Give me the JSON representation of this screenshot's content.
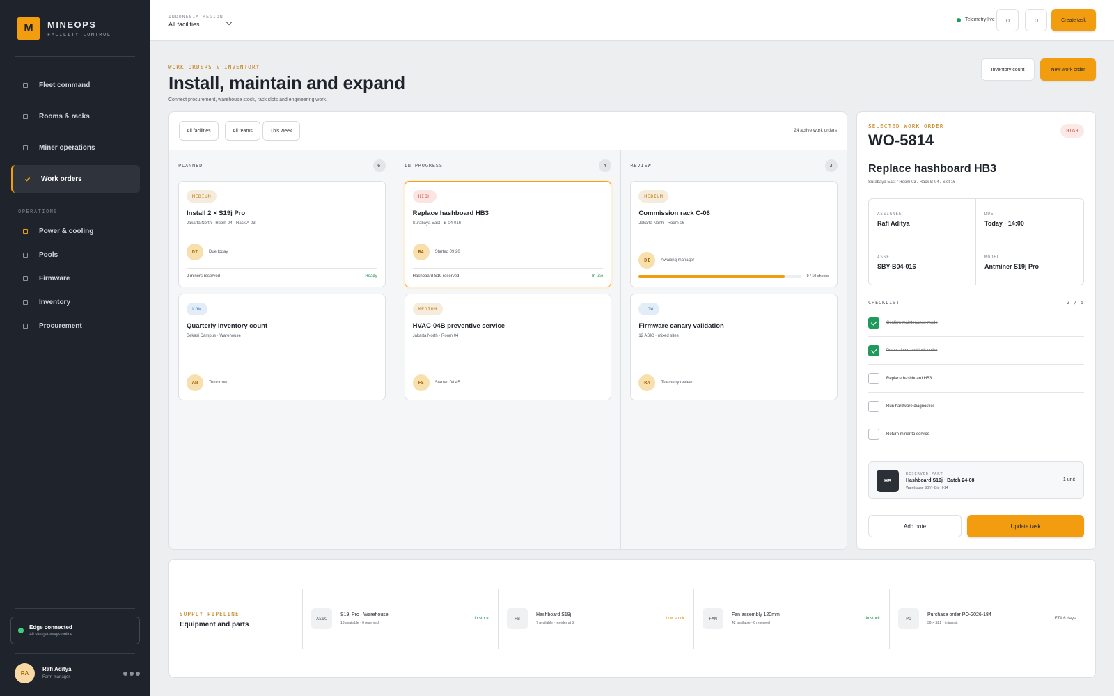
{
  "sidebar": {
    "logo": "M",
    "brand": "MINEOPS",
    "tagline": "FACILITY CONTROL",
    "nav": [
      {
        "label": "Fleet command"
      },
      {
        "label": "Rooms & racks"
      },
      {
        "label": "Miner operations"
      },
      {
        "label": "Work orders",
        "active": true
      }
    ],
    "section": "OPERATIONS",
    "ops": [
      {
        "label": "Power & cooling",
        "color": "#f29d0f"
      },
      {
        "label": "Pools"
      },
      {
        "label": "Firmware"
      },
      {
        "label": "Inventory"
      },
      {
        "label": "Procurement"
      }
    ],
    "status": {
      "title": "Edge connected",
      "detail": "All site gateways online",
      "color": "#3ccf7a"
    },
    "user": {
      "initials": "RA",
      "name": "Rafi Aditya",
      "role": "Farm manager"
    }
  },
  "topbar": {
    "region_label": "INDONESIA REGION",
    "region": "All facilities",
    "telemetry": "Telemetry live",
    "telemetry_color": "#1e9a5a",
    "create": "Create task"
  },
  "header": {
    "eyebrow": "WORK ORDERS & INVENTORY",
    "title": "Install, maintain and expand",
    "subtitle": "Connect procurement, warehouse stock, rack slots and engineering work.",
    "secondary_action": "Inventory count",
    "primary_action": "New work order"
  },
  "board": {
    "filters": [
      "All facilities",
      "All teams",
      "This week"
    ],
    "summary": "24 active work orders",
    "columns": [
      {
        "name": "PLANNED",
        "count": 6,
        "cards": [
          {
            "priority": "MEDIUM",
            "priority_color": "#c27a0a",
            "title": "Install 2 × S19j Pro",
            "location": "Jakarta North · Room 04 · Rack A-03",
            "initials": "DI",
            "meta": "Due today",
            "footer": "2 miners reserved",
            "status": "Ready",
            "status_color": "#1e8a4c"
          },
          {
            "priority": "LOW",
            "priority_color": "#3a7bc8",
            "title": "Quarterly inventory count",
            "location": "Bekasi Campus · Warehouse",
            "initials": "AN",
            "meta": "Tomorrow"
          }
        ]
      },
      {
        "name": "IN PROGRESS",
        "count": 4,
        "cards": [
          {
            "priority": "HIGH",
            "priority_color": "#d9443a",
            "title": "Replace hashboard HB3",
            "location": "Surabaya East · B-04-016",
            "initials": "RA",
            "meta": "Started 09:20",
            "footer": "Hashboard S19 reserved",
            "status": "In use",
            "status_color": "#1e8a4c",
            "selected": true
          },
          {
            "priority": "MEDIUM",
            "priority_color": "#c27a0a",
            "title": "HVAC-04B preventive service",
            "location": "Jakarta North · Room 04",
            "initials": "FS",
            "meta": "Started 08:45"
          }
        ]
      },
      {
        "name": "REVIEW",
        "count": 3,
        "cards": [
          {
            "priority": "MEDIUM",
            "priority_color": "#c27a0a",
            "title": "Commission rack C-06",
            "location": "Jakarta North · Room 06",
            "initials": "DI",
            "meta": "Awaiting manager",
            "progress": {
              "done": 9,
              "total": 10,
              "label": "9 / 10 checks"
            }
          },
          {
            "priority": "LOW",
            "priority_color": "#3a7bc8",
            "title": "Firmware canary validation",
            "location": "12 ASIC · mixed sites",
            "initials": "RA",
            "meta": "Telemetry review"
          }
        ]
      }
    ]
  },
  "detail": {
    "eyebrow": "SELECTED WORK ORDER",
    "id": "WO-5814",
    "priority": "HIGH",
    "priority_color": "#d9443a",
    "title": "Replace hashboard HB3",
    "path": "Surabaya East / Room 03 / Rack B-04 / Slot 16",
    "fields": [
      {
        "label": "ASSIGNEE",
        "value": "Rafi Aditya"
      },
      {
        "label": "DUE",
        "value": "Today · 14:00"
      },
      {
        "label": "ASSET",
        "value": "SBY-B04-016"
      },
      {
        "label": "MODEL",
        "value": "Antminer S19j Pro"
      }
    ],
    "checklist_label": "CHECKLIST",
    "checklist_progress": "2 / 5",
    "checklist": [
      {
        "text": "Confirm maintenance mode",
        "done": true
      },
      {
        "text": "Power down and lock outlet",
        "done": true
      },
      {
        "text": "Replace hashboard HB3",
        "done": false
      },
      {
        "text": "Run hardware diagnostics",
        "done": false
      },
      {
        "text": "Return miner to service",
        "done": false
      }
    ],
    "part": {
      "icon": "HB",
      "label": "RESERVED PART",
      "name": "Hashboard S19j · Batch 24-08",
      "location": "Warehouse SBY · Bin H-14",
      "qty": "1 unit"
    },
    "secondary_action": "Add note",
    "primary_action": "Update task"
  },
  "supply": {
    "eyebrow": "SUPPLY PIPELINE",
    "title": "Equipment and parts",
    "items": [
      {
        "code": "ASIC",
        "name": "S19j Pro · Warehouse",
        "detail": "18 available · 6 reserved",
        "status": "In stock",
        "status_color": "#1e8a4c"
      },
      {
        "code": "HB",
        "name": "Hashboard S19j",
        "detail": "7 available · reorder at 5",
        "status": "Low stock",
        "status_color": "#d08a0c"
      },
      {
        "code": "FAN",
        "name": "Fan assembly 120mm",
        "detail": "42 available · 6 reserved",
        "status": "In stock",
        "status_color": "#1e8a4c"
      },
      {
        "code": "PO",
        "name": "Purchase order PO-2026-184",
        "detail": "36 × S21 · in transit",
        "status": "ETA 6 days",
        "status_color": "#555b66"
      }
    ]
  }
}
